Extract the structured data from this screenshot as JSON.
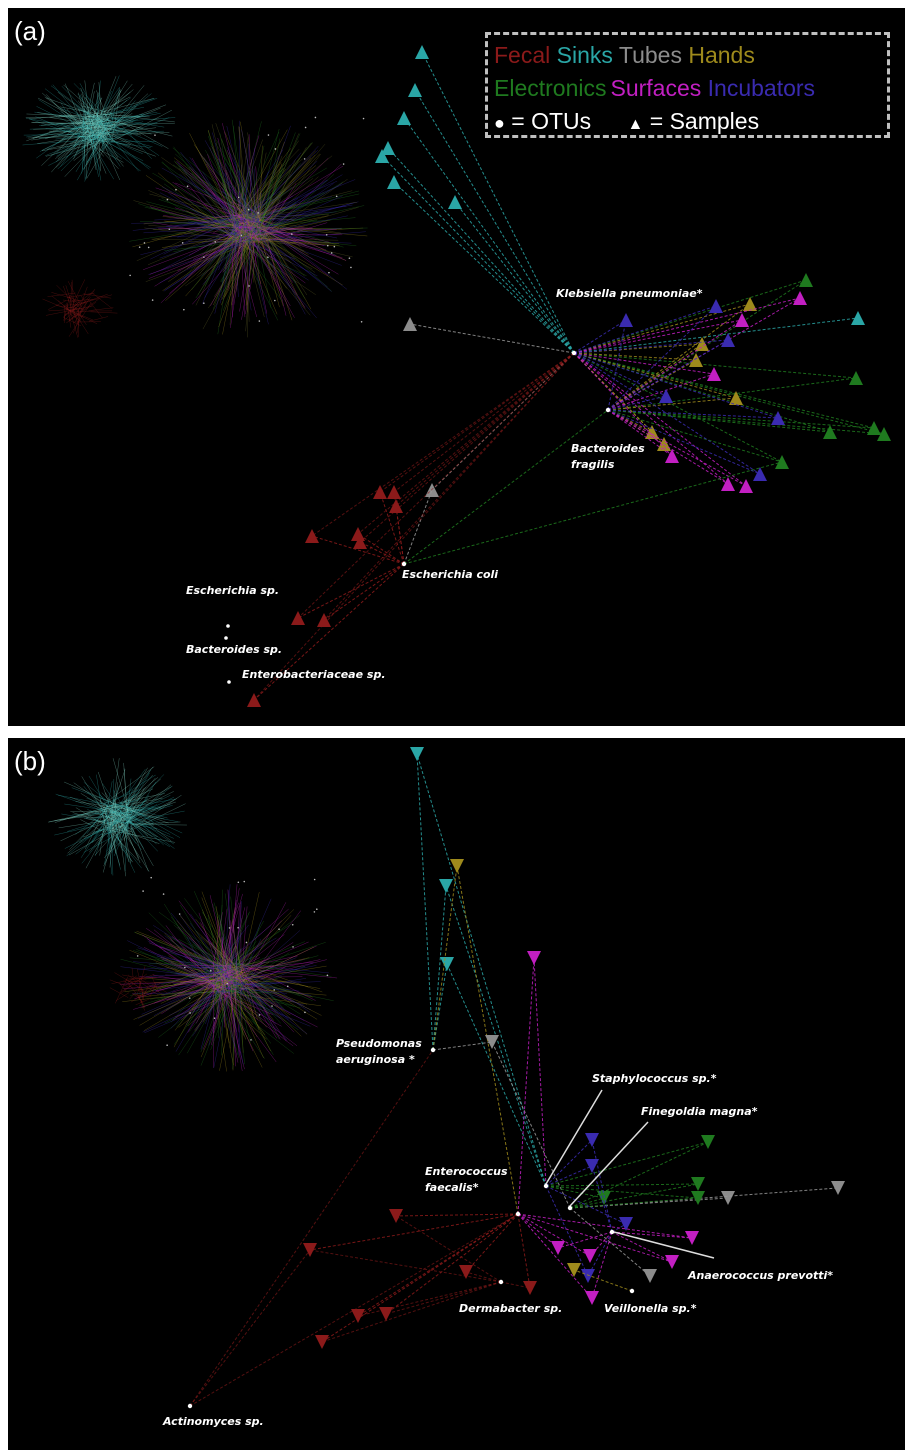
{
  "panels": [
    {
      "id": "a",
      "label": "(a)"
    },
    {
      "id": "b",
      "label": "(b)"
    }
  ],
  "legend": {
    "categories": [
      {
        "name": "Fecal",
        "color": "#8b1a1a"
      },
      {
        "name": "Sinks",
        "color": "#2aa6a6"
      },
      {
        "name": "Tubes",
        "color": "#8c8c8c"
      },
      {
        "name": "Hands",
        "color": "#9e8a1c"
      },
      {
        "name": "Electronics",
        "color": "#1f7a1f"
      },
      {
        "name": "Surfaces",
        "color": "#c21fc2"
      },
      {
        "name": "Incubators",
        "color": "#3a2bb0"
      }
    ],
    "otus_label": "= OTUs",
    "samples_label": "= Samples",
    "otu_symbol": "●",
    "sample_symbol": "▲"
  },
  "panel_a_labels": [
    {
      "key": "klebsiella",
      "text": "Klebsiella pneumoniae*"
    },
    {
      "key": "bacteroides_fragilis",
      "text": "Bacteroides fragilis"
    },
    {
      "key": "escherichia_coli",
      "text": "Escherichia coli"
    },
    {
      "key": "escherichia_sp",
      "text": "Escherichia sp."
    },
    {
      "key": "bacteroides_sp",
      "text": "Bacteroides sp."
    },
    {
      "key": "enterobacteriaceae",
      "text": "Enterobacteriaceae sp."
    }
  ],
  "panel_b_labels": [
    {
      "key": "pseudomonas",
      "text": "Pseudomonas aeruginosa *"
    },
    {
      "key": "staphylococcus",
      "text": "Staphylococcus sp.*"
    },
    {
      "key": "finegoldia",
      "text": "Finegoldia magna*"
    },
    {
      "key": "enterococcus",
      "text": "Enterococcus faecalis*"
    },
    {
      "key": "anaerococcus",
      "text": "Anaerococcus prevotti*"
    },
    {
      "key": "dermabacter",
      "text": "Dermabacter sp."
    },
    {
      "key": "veillonella",
      "text": "Veillonella sp.*"
    },
    {
      "key": "actinomyces",
      "text": "Actinomyces sp."
    }
  ]
}
